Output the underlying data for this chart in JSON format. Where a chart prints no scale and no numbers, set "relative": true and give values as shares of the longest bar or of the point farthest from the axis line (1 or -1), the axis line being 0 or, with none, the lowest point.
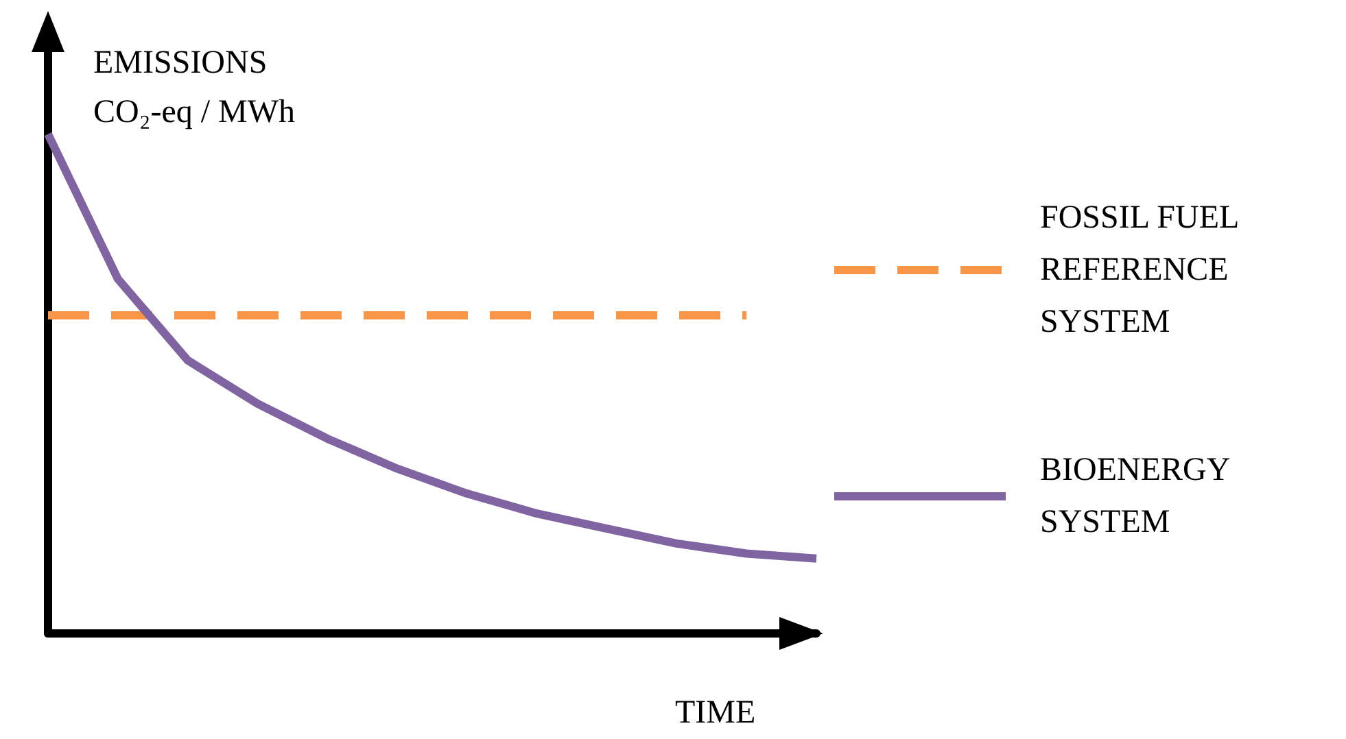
{
  "chart_data": {
    "type": "line",
    "relative": true,
    "xlabel": "TIME",
    "ylabel": "EMISSIONS CO₂-eq / MWh",
    "categories": [
      null,
      null,
      null,
      null,
      null,
      null,
      null,
      null,
      null,
      null,
      null,
      null
    ],
    "series": [
      {
        "name": "FOSSIL FUEL REFERENCE SYSTEM",
        "color": "#f79646",
        "line_style": "dashed",
        "values": [
          0.637,
          0.637,
          0.637,
          0.637,
          0.637,
          0.637,
          0.637,
          0.637,
          0.637,
          0.637,
          0.637,
          null
        ]
      },
      {
        "name": "BIOENERGY SYSTEM",
        "color": "#8064a2",
        "line_style": "solid",
        "values": [
          1,
          0.71,
          0.547,
          0.46,
          0.39,
          0.33,
          0.28,
          0.24,
          0.21,
          0.18,
          0.16,
          0.15
        ]
      }
    ],
    "legend": "right",
    "grid": false,
    "marker": "none"
  }
}
